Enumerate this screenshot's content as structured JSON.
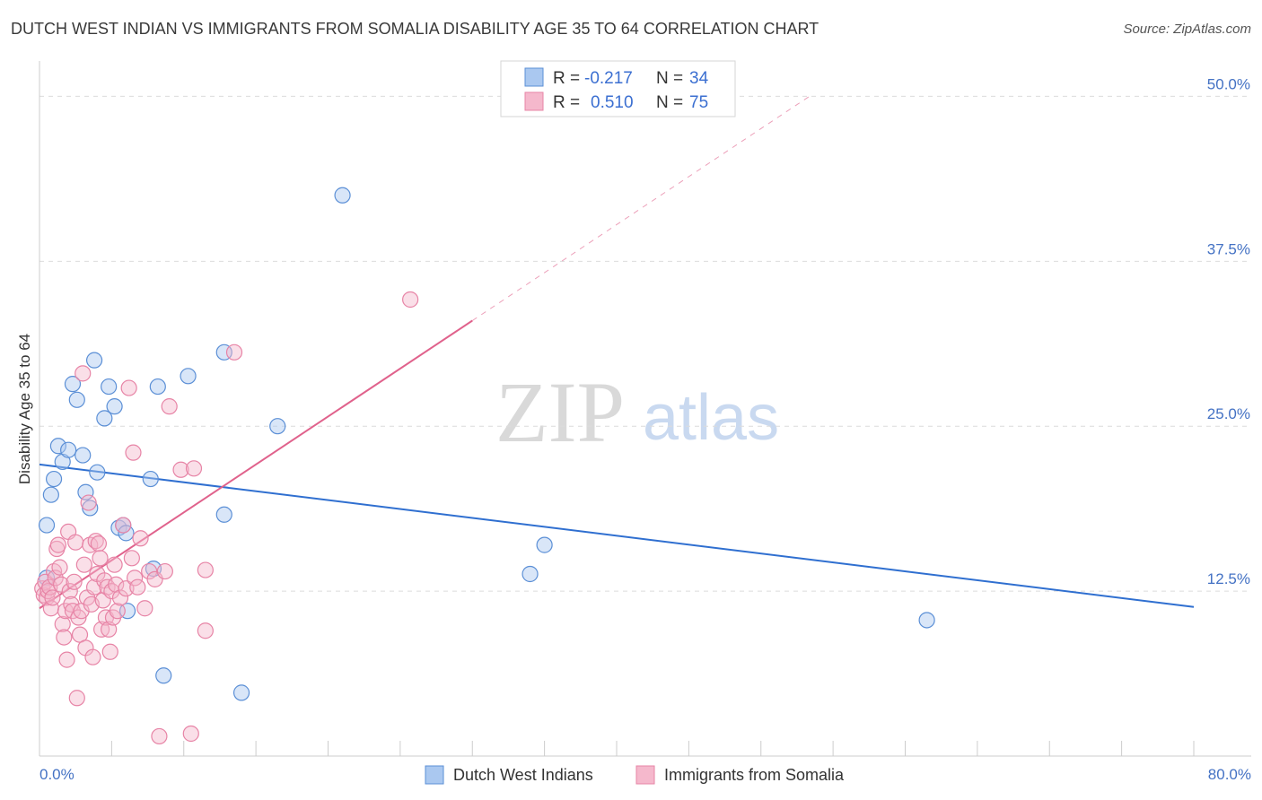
{
  "header": {
    "title": "DUTCH WEST INDIAN VS IMMIGRANTS FROM SOMALIA DISABILITY AGE 35 TO 64 CORRELATION CHART",
    "source": "Source: ZipAtlas.com"
  },
  "watermark": {
    "zip": "ZIP",
    "atlas": "atlas"
  },
  "colors": {
    "blue_fill": "#aac8f0",
    "blue_stroke": "#5b8fd6",
    "blue_line": "#2f6fd0",
    "pink_fill": "#f5b8cc",
    "pink_stroke": "#e784a6",
    "pink_line": "#e0628c",
    "grid": "#dcdcdc",
    "axis_text": "#4472c4"
  },
  "legend": {
    "row1": {
      "r_label": "R =",
      "r_value": "-0.217",
      "n_label": "N =",
      "n_value": "34"
    },
    "row2": {
      "r_label": "R =",
      "r_value": "0.510",
      "n_label": "N =",
      "n_value": "75"
    }
  },
  "chart_data": {
    "type": "scatter",
    "title": "DUTCH WEST INDIAN VS IMMIGRANTS FROM SOMALIA DISABILITY AGE 35 TO 64 CORRELATION CHART",
    "xlabel": "",
    "ylabel": "Disability Age 35 to 64",
    "xlim": [
      0,
      80
    ],
    "ylim": [
      0,
      52
    ],
    "x_tick_labels": [
      "0.0%",
      "80.0%"
    ],
    "y_ticks": [
      12.5,
      25.0,
      37.5,
      50.0
    ],
    "y_tick_labels": [
      "12.5%",
      "25.0%",
      "37.5%",
      "50.0%"
    ],
    "series": [
      {
        "name": "Dutch West Indians",
        "color": "blue",
        "points": [
          [
            0.5,
            13.5
          ],
          [
            0.5,
            17.5
          ],
          [
            0.8,
            19.8
          ],
          [
            1.0,
            21.0
          ],
          [
            1.3,
            23.5
          ],
          [
            1.6,
            22.3
          ],
          [
            2.0,
            23.2
          ],
          [
            2.3,
            28.2
          ],
          [
            2.6,
            27.0
          ],
          [
            3.0,
            22.8
          ],
          [
            3.2,
            20.0
          ],
          [
            3.5,
            18.8
          ],
          [
            3.8,
            30.0
          ],
          [
            4.0,
            21.5
          ],
          [
            4.5,
            25.6
          ],
          [
            4.8,
            28.0
          ],
          [
            5.2,
            26.5
          ],
          [
            5.5,
            17.3
          ],
          [
            5.8,
            17.5
          ],
          [
            6.0,
            16.9
          ],
          [
            6.1,
            11.0
          ],
          [
            7.7,
            21.0
          ],
          [
            7.9,
            14.2
          ],
          [
            8.2,
            28.0
          ],
          [
            8.6,
            6.1
          ],
          [
            10.3,
            28.8
          ],
          [
            12.8,
            18.3
          ],
          [
            12.8,
            30.6
          ],
          [
            14.0,
            4.8
          ],
          [
            16.5,
            25.0
          ],
          [
            21.0,
            42.5
          ],
          [
            34.0,
            13.8
          ],
          [
            35.0,
            16.0
          ],
          [
            61.5,
            10.3
          ]
        ],
        "trend": {
          "x": [
            0,
            80
          ],
          "y": [
            22.1,
            11.3
          ]
        }
      },
      {
        "name": "Immigrants from Somalia",
        "color": "pink",
        "points": [
          [
            0.2,
            12.7
          ],
          [
            0.3,
            12.2
          ],
          [
            0.4,
            13.2
          ],
          [
            0.5,
            12.0
          ],
          [
            0.6,
            12.5
          ],
          [
            0.7,
            12.8
          ],
          [
            0.8,
            11.2
          ],
          [
            0.9,
            12.0
          ],
          [
            1.0,
            14.0
          ],
          [
            1.1,
            13.5
          ],
          [
            1.2,
            15.7
          ],
          [
            1.3,
            16.0
          ],
          [
            1.4,
            14.3
          ],
          [
            1.5,
            13.0
          ],
          [
            1.6,
            10.0
          ],
          [
            1.7,
            9.0
          ],
          [
            1.8,
            11.0
          ],
          [
            1.9,
            7.3
          ],
          [
            2.0,
            17.0
          ],
          [
            2.1,
            12.5
          ],
          [
            2.2,
            11.5
          ],
          [
            2.3,
            11.0
          ],
          [
            2.4,
            13.2
          ],
          [
            2.5,
            16.2
          ],
          [
            2.6,
            4.4
          ],
          [
            2.7,
            10.5
          ],
          [
            2.8,
            9.2
          ],
          [
            2.9,
            11.0
          ],
          [
            3.0,
            29.0
          ],
          [
            3.1,
            14.5
          ],
          [
            3.2,
            8.2
          ],
          [
            3.3,
            12.0
          ],
          [
            3.4,
            19.2
          ],
          [
            3.5,
            16.0
          ],
          [
            3.6,
            11.5
          ],
          [
            3.7,
            7.5
          ],
          [
            3.8,
            12.8
          ],
          [
            3.9,
            16.3
          ],
          [
            4.0,
            13.8
          ],
          [
            4.1,
            16.1
          ],
          [
            4.2,
            15.0
          ],
          [
            4.3,
            9.6
          ],
          [
            4.4,
            11.8
          ],
          [
            4.5,
            13.3
          ],
          [
            4.6,
            10.5
          ],
          [
            4.7,
            12.8
          ],
          [
            4.8,
            9.6
          ],
          [
            4.9,
            7.9
          ],
          [
            5.0,
            12.5
          ],
          [
            5.1,
            10.5
          ],
          [
            5.2,
            14.5
          ],
          [
            5.3,
            13.0
          ],
          [
            5.4,
            11.0
          ],
          [
            5.6,
            12.0
          ],
          [
            5.8,
            17.5
          ],
          [
            6.0,
            12.7
          ],
          [
            6.2,
            27.9
          ],
          [
            6.4,
            15.0
          ],
          [
            6.6,
            13.5
          ],
          [
            6.8,
            12.8
          ],
          [
            7.0,
            16.5
          ],
          [
            7.3,
            11.2
          ],
          [
            7.6,
            14.0
          ],
          [
            8.0,
            13.4
          ],
          [
            8.3,
            1.5
          ],
          [
            8.7,
            14.0
          ],
          [
            9.0,
            26.5
          ],
          [
            9.8,
            21.7
          ],
          [
            10.5,
            1.7
          ],
          [
            10.7,
            21.8
          ],
          [
            11.5,
            14.1
          ],
          [
            11.5,
            9.5
          ],
          [
            13.5,
            30.6
          ],
          [
            25.7,
            34.6
          ],
          [
            6.5,
            23.0
          ]
        ],
        "trend": {
          "x": [
            0,
            30
          ],
          "y": [
            11.2,
            33.0
          ]
        },
        "trend_extension": {
          "x": [
            30,
            53.5
          ],
          "y": [
            33.0,
            50.1
          ]
        }
      }
    ],
    "legend_entries": [
      "Dutch West Indians",
      "Immigrants from Somalia"
    ]
  }
}
